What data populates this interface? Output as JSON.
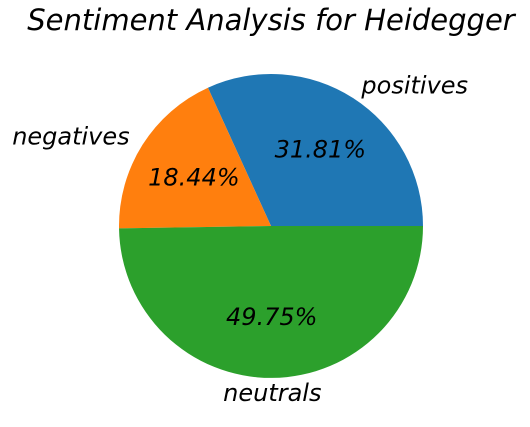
{
  "chart_data": {
    "type": "pie",
    "title": "Sentiment Analysis for Heidegger",
    "slices": [
      {
        "label": "positives",
        "value": 31.81,
        "display": "31.81%",
        "color": "#1f77b4"
      },
      {
        "label": "negatives",
        "value": 18.44,
        "display": "18.44%",
        "color": "#ff7f0e"
      },
      {
        "label": "neutrals",
        "value": 49.75,
        "display": "49.75%",
        "color": "#2ca02c"
      }
    ],
    "start_angle_deg": 0,
    "direction": "counterclockwise"
  }
}
